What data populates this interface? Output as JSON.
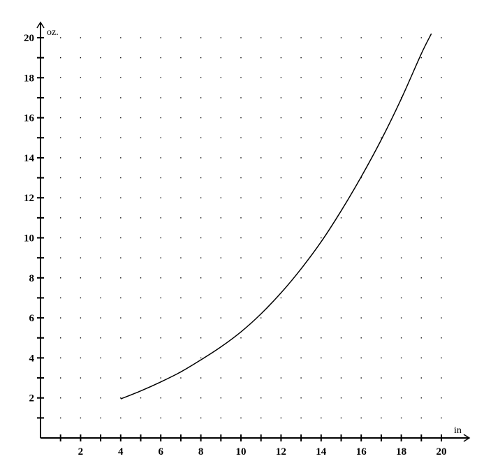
{
  "chart_data": {
    "type": "line",
    "title": "",
    "xlabel": "in",
    "ylabel": "oz.",
    "xlim": [
      0,
      21
    ],
    "ylim": [
      0,
      21
    ],
    "grid": "dotted",
    "x_minor_step": 1,
    "y_minor_step": 1,
    "x_tick_labels": [
      "2",
      "4",
      "6",
      "8",
      "10",
      "12",
      "14",
      "16",
      "18",
      "20"
    ],
    "y_tick_labels": [
      "2",
      "4",
      "6",
      "8",
      "10",
      "12",
      "14",
      "16",
      "18",
      "20"
    ],
    "series": [
      {
        "x": [
          4,
          5,
          6,
          7,
          8,
          9,
          10,
          11,
          12,
          13,
          14,
          15,
          16,
          17,
          18,
          19,
          19.5
        ],
        "y": [
          1.95,
          2.35,
          2.8,
          3.3,
          3.9,
          4.55,
          5.3,
          6.2,
          7.25,
          8.45,
          9.8,
          11.35,
          13.05,
          14.9,
          16.95,
          19.2,
          20.2
        ]
      }
    ]
  }
}
